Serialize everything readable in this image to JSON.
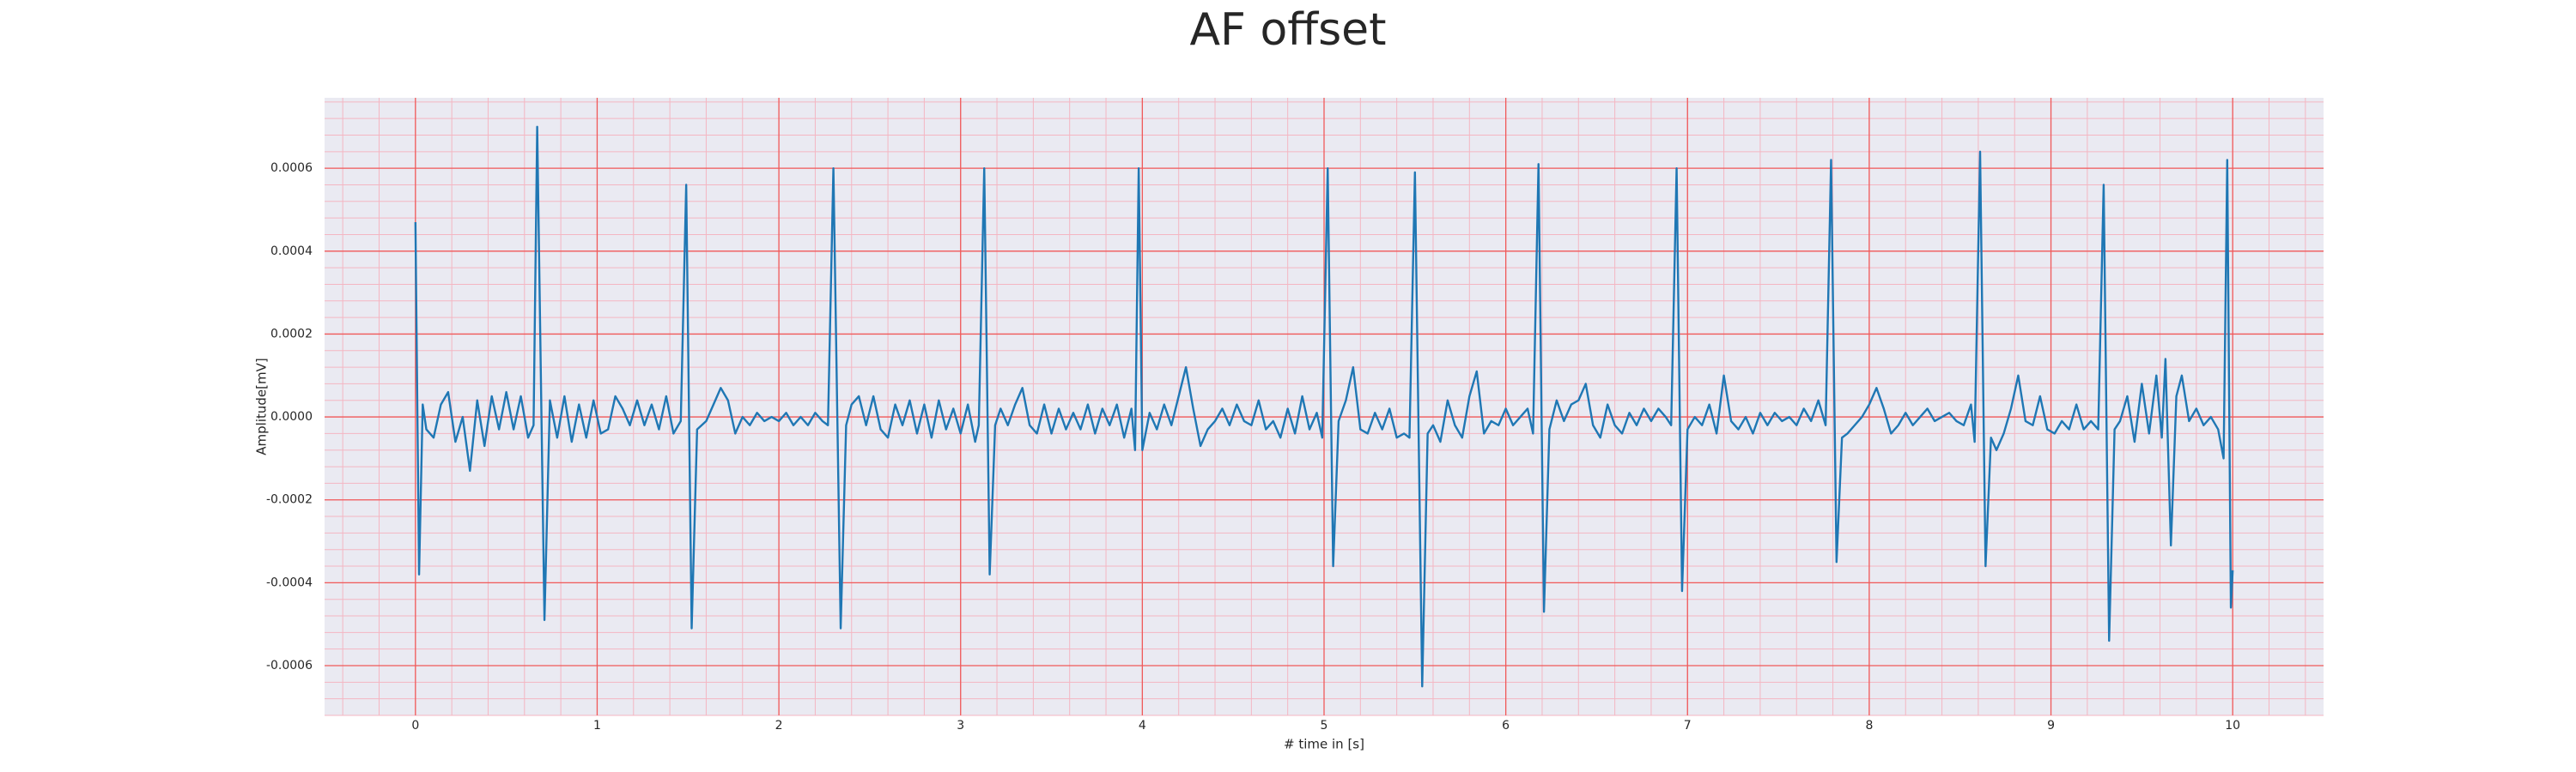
{
  "chart_data": {
    "type": "line",
    "title": "AF offset",
    "x_label": "# time in [s]",
    "y_label": "Amplitude[mV]",
    "xlim": [
      -0.5,
      10.5
    ],
    "ylim": [
      -0.00072,
      0.00077
    ],
    "xticks": [
      0,
      1,
      2,
      3,
      4,
      5,
      6,
      7,
      8,
      9,
      10
    ],
    "yticks": [
      -0.0006,
      -0.0004,
      -0.0002,
      {
        "value": 0,
        "label": "0.0000"
      },
      0.0002,
      0.0004,
      0.0006
    ],
    "grid": true,
    "grid_color": "#f05a5a",
    "minor_grid_color": "#f4b6c2",
    "minor_divisions": 5,
    "background": "#eaeaf2",
    "x": [
      0,
      0.02,
      0.04,
      0.06,
      0.1,
      0.14,
      0.18,
      0.22,
      0.26,
      0.3,
      0.34,
      0.38,
      0.42,
      0.46,
      0.5,
      0.54,
      0.58,
      0.62,
      0.65,
      0.67,
      0.71,
      0.74,
      0.78,
      0.82,
      0.86,
      0.9,
      0.94,
      0.98,
      1.02,
      1.06,
      1.1,
      1.14,
      1.18,
      1.22,
      1.26,
      1.3,
      1.34,
      1.38,
      1.42,
      1.46,
      1.49,
      1.52,
      1.55,
      1.6,
      1.64,
      1.68,
      1.72,
      1.76,
      1.8,
      1.84,
      1.88,
      1.92,
      1.96,
      2.0,
      2.04,
      2.08,
      2.12,
      2.16,
      2.2,
      2.24,
      2.27,
      2.3,
      2.34,
      2.37,
      2.4,
      2.44,
      2.48,
      2.52,
      2.56,
      2.6,
      2.64,
      2.68,
      2.72,
      2.76,
      2.8,
      2.84,
      2.88,
      2.92,
      2.96,
      3.0,
      3.04,
      3.08,
      3.1,
      3.13,
      3.16,
      3.19,
      3.22,
      3.26,
      3.3,
      3.34,
      3.38,
      3.42,
      3.46,
      3.5,
      3.54,
      3.58,
      3.62,
      3.66,
      3.7,
      3.74,
      3.78,
      3.82,
      3.86,
      3.9,
      3.94,
      3.96,
      3.98,
      4.0,
      4.04,
      4.08,
      4.12,
      4.16,
      4.2,
      4.24,
      4.28,
      4.32,
      4.36,
      4.4,
      4.44,
      4.48,
      4.52,
      4.56,
      4.6,
      4.64,
      4.68,
      4.72,
      4.76,
      4.8,
      4.84,
      4.88,
      4.92,
      4.96,
      4.99,
      5.02,
      5.05,
      5.08,
      5.12,
      5.16,
      5.2,
      5.24,
      5.28,
      5.32,
      5.36,
      5.4,
      5.44,
      5.47,
      5.5,
      5.54,
      5.57,
      5.6,
      5.64,
      5.68,
      5.72,
      5.76,
      5.8,
      5.84,
      5.88,
      5.92,
      5.96,
      6.0,
      6.04,
      6.08,
      6.12,
      6.15,
      6.18,
      6.21,
      6.24,
      6.28,
      6.32,
      6.36,
      6.4,
      6.44,
      6.48,
      6.52,
      6.56,
      6.6,
      6.64,
      6.68,
      6.72,
      6.76,
      6.8,
      6.84,
      6.88,
      6.91,
      6.94,
      6.97,
      7.0,
      7.04,
      7.08,
      7.12,
      7.16,
      7.2,
      7.24,
      7.28,
      7.32,
      7.36,
      7.4,
      7.44,
      7.48,
      7.52,
      7.56,
      7.6,
      7.64,
      7.68,
      7.72,
      7.76,
      7.79,
      7.82,
      7.85,
      7.88,
      7.92,
      7.96,
      8.0,
      8.04,
      8.08,
      8.12,
      8.16,
      8.2,
      8.24,
      8.28,
      8.32,
      8.36,
      8.4,
      8.44,
      8.48,
      8.52,
      8.56,
      8.58,
      8.61,
      8.64,
      8.67,
      8.7,
      8.74,
      8.78,
      8.82,
      8.86,
      8.9,
      8.94,
      8.98,
      9.02,
      9.06,
      9.1,
      9.14,
      9.18,
      9.22,
      9.26,
      9.29,
      9.32,
      9.35,
      9.38,
      9.42,
      9.46,
      9.5,
      9.54,
      9.58,
      9.61,
      9.63,
      9.66,
      9.69,
      9.72,
      9.76,
      9.8,
      9.84,
      9.88,
      9.92,
      9.95,
      9.97,
      9.99,
      10.0
    ],
    "series": [
      {
        "color": "#1f77b4",
        "values": [
          0.00047,
          -0.00038,
          3e-05,
          -3e-05,
          -5e-05,
          3e-05,
          6e-05,
          -6e-05,
          0,
          -0.00013,
          4e-05,
          -7e-05,
          5e-05,
          -3e-05,
          6e-05,
          -3e-05,
          5e-05,
          -5e-05,
          -2e-05,
          0.0007,
          -0.00049,
          4e-05,
          -5e-05,
          5e-05,
          -6e-05,
          3e-05,
          -5e-05,
          4e-05,
          -4e-05,
          -3e-05,
          5e-05,
          2e-05,
          -2e-05,
          4e-05,
          -2e-05,
          3e-05,
          -3e-05,
          5e-05,
          -4e-05,
          -1e-05,
          0.00056,
          -0.00051,
          -3e-05,
          -1e-05,
          3e-05,
          7e-05,
          4e-05,
          -4e-05,
          0,
          -2e-05,
          1e-05,
          -1e-05,
          0,
          -1e-05,
          1e-05,
          -2e-05,
          0,
          -2e-05,
          1e-05,
          -1e-05,
          -2e-05,
          0.0006,
          -0.00051,
          -2e-05,
          3e-05,
          5e-05,
          -2e-05,
          5e-05,
          -3e-05,
          -5e-05,
          3e-05,
          -2e-05,
          4e-05,
          -4e-05,
          3e-05,
          -5e-05,
          4e-05,
          -3e-05,
          2e-05,
          -4e-05,
          3e-05,
          -6e-05,
          -2e-05,
          0.0006,
          -0.00038,
          -2e-05,
          2e-05,
          -2e-05,
          3e-05,
          7e-05,
          -2e-05,
          -4e-05,
          3e-05,
          -4e-05,
          2e-05,
          -3e-05,
          1e-05,
          -3e-05,
          3e-05,
          -4e-05,
          2e-05,
          -2e-05,
          3e-05,
          -5e-05,
          2e-05,
          -8e-05,
          0.0006,
          -8e-05,
          1e-05,
          -3e-05,
          3e-05,
          -2e-05,
          5e-05,
          0.00012,
          2e-05,
          -7e-05,
          -3e-05,
          -1e-05,
          2e-05,
          -2e-05,
          3e-05,
          -1e-05,
          -2e-05,
          4e-05,
          -3e-05,
          -1e-05,
          -5e-05,
          2e-05,
          -4e-05,
          5e-05,
          -3e-05,
          1e-05,
          -5e-05,
          0.0006,
          -0.00036,
          -1e-05,
          4e-05,
          0.00012,
          -3e-05,
          -4e-05,
          1e-05,
          -3e-05,
          2e-05,
          -5e-05,
          -4e-05,
          -5e-05,
          0.00059,
          -0.00065,
          -4e-05,
          -2e-05,
          -6e-05,
          4e-05,
          -2e-05,
          -5e-05,
          5e-05,
          0.00011,
          -4e-05,
          -1e-05,
          -2e-05,
          2e-05,
          -2e-05,
          0,
          2e-05,
          -4e-05,
          0.00061,
          -0.00047,
          -3e-05,
          4e-05,
          -1e-05,
          3e-05,
          4e-05,
          8e-05,
          -2e-05,
          -5e-05,
          3e-05,
          -2e-05,
          -4e-05,
          1e-05,
          -2e-05,
          2e-05,
          -1e-05,
          2e-05,
          0,
          -2e-05,
          0.0006,
          -0.00042,
          -3e-05,
          0,
          -2e-05,
          3e-05,
          -4e-05,
          0.0001,
          -1e-05,
          -3e-05,
          0,
          -4e-05,
          1e-05,
          -2e-05,
          1e-05,
          -1e-05,
          0,
          -2e-05,
          2e-05,
          -1e-05,
          4e-05,
          -2e-05,
          0.00062,
          -0.00035,
          -5e-05,
          -4e-05,
          -2e-05,
          0,
          3e-05,
          7e-05,
          2e-05,
          -4e-05,
          -2e-05,
          1e-05,
          -2e-05,
          0,
          2e-05,
          -1e-05,
          0,
          1e-05,
          -1e-05,
          -2e-05,
          3e-05,
          -6e-05,
          0.00064,
          -0.00036,
          -5e-05,
          -8e-05,
          -4e-05,
          2e-05,
          0.0001,
          -1e-05,
          -2e-05,
          5e-05,
          -3e-05,
          -4e-05,
          -1e-05,
          -3e-05,
          3e-05,
          -3e-05,
          -1e-05,
          -3e-05,
          0.00056,
          -0.00054,
          -3e-05,
          -1e-05,
          5e-05,
          -6e-05,
          8e-05,
          -4e-05,
          0.0001,
          -5e-05,
          0.00014,
          -0.00031,
          5e-05,
          0.0001,
          -1e-05,
          2e-05,
          -2e-05,
          0,
          -3e-05,
          -0.0001,
          0.00062,
          -0.00046,
          -0.00037
        ]
      }
    ]
  }
}
